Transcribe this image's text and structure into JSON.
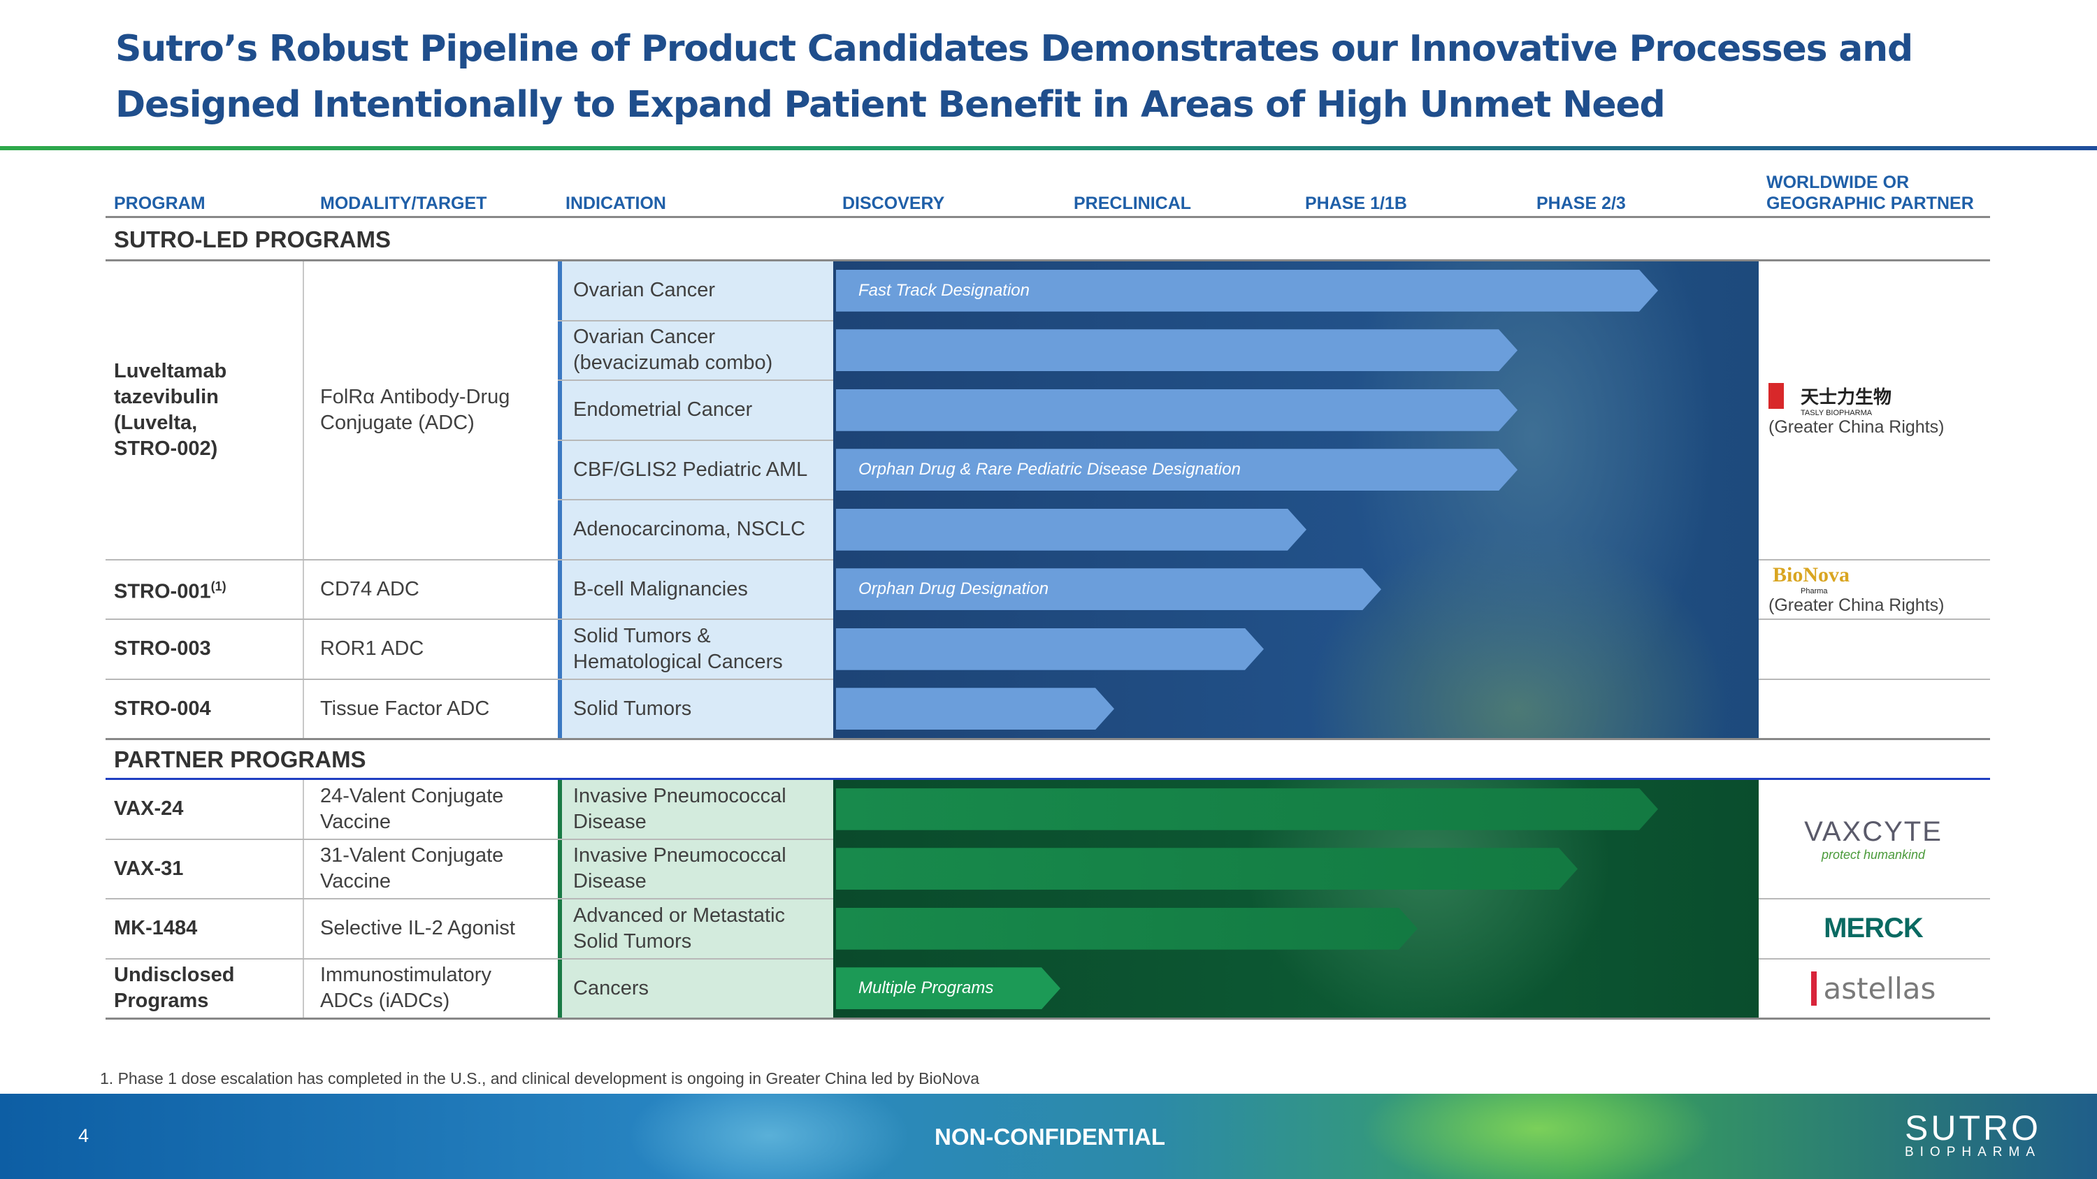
{
  "header": {
    "title": [
      "Sutro’s Robust Pipeline of Product Candidates Demonstrates our Innovative Processes and",
      "Designed Intentionally to Expand Patient Benefit in Areas of High Unmet Need"
    ]
  },
  "table": {
    "columns": [
      "PROGRAM",
      "MODALITY/TARGET",
      "INDICATION",
      "DISCOVERY",
      "PRECLINICAL",
      "PHASE 1/1B",
      "PHASE 2/3",
      [
        "WORLDWIDE OR",
        "GEOGRAPHIC PARTNER"
      ]
    ],
    "sections": [
      {
        "title": "SUTRO-LED PROGRAMS",
        "programs": [
          {
            "program": [
              "Luveltamab",
              "tazevibulin",
              "(Luvelta,",
              "STRO-002)"
            ],
            "modality": [
              "FolRα Antibody-Drug",
              "Conjugate (ADC)"
            ],
            "indications": [
              {
                "text": [
                  "Ovarian Cancer"
                ],
                "designation": "Fast Track Designation"
              },
              {
                "text": [
                  "Ovarian Cancer",
                  "(bevacizumab combo)"
                ]
              },
              {
                "text": [
                  "Endometrial Cancer"
                ]
              },
              {
                "text": [
                  "CBF/GLIS2 Pediatric AML"
                ],
                "designation": "Orphan Drug & Rare Pediatric Disease Designation"
              },
              {
                "text": [
                  "Adenocarcinoma, NSCLC"
                ]
              }
            ]
          },
          {
            "program": [
              "STRO-001"
            ],
            "footnote_ref": "(1)",
            "modality": [
              "CD74 ADC"
            ],
            "indications": [
              {
                "text": [
                  "B-cell Malignancies"
                ],
                "designation": "Orphan Drug Designation"
              }
            ]
          },
          {
            "program": [
              "STRO-003"
            ],
            "modality": [
              "ROR1 ADC"
            ],
            "indications": [
              {
                "text": [
                  "Solid Tumors &",
                  "Hematological Cancers"
                ]
              }
            ]
          },
          {
            "program": [
              "STRO-004"
            ],
            "modality": [
              "Tissue Factor ADC"
            ],
            "indications": [
              {
                "text": [
                  "Solid Tumors"
                ]
              }
            ]
          }
        ],
        "partners": [
          {
            "logo": "天士力生物",
            "logo_sub": "TASLY BIOPHARMA",
            "note": "(Greater China Rights)"
          },
          {
            "logo": "BioNova",
            "logo_sub": "Pharma",
            "note": "(Greater China Rights)"
          }
        ]
      },
      {
        "title": "PARTNER PROGRAMS",
        "programs": [
          {
            "program": [
              "VAX-24"
            ],
            "modality": [
              "24-Valent Conjugate",
              "Vaccine"
            ],
            "indications": [
              {
                "text": [
                  "Invasive Pneumococcal",
                  "Disease"
                ]
              }
            ]
          },
          {
            "program": [
              "VAX-31"
            ],
            "modality": [
              "31-Valent Conjugate",
              "Vaccine"
            ],
            "indications": [
              {
                "text": [
                  "Invasive Pneumococcal",
                  "Disease"
                ]
              }
            ]
          },
          {
            "program": [
              "MK-1484"
            ],
            "modality": [
              "Selective IL-2 Agonist"
            ],
            "indications": [
              {
                "text": [
                  "Advanced or Metastatic",
                  "Solid Tumors"
                ]
              }
            ]
          },
          {
            "program": [
              "Undisclosed",
              "Programs"
            ],
            "modality": [
              "Immunostimulatory",
              "ADCs (iADCs)"
            ],
            "indications": [
              {
                "text": [
                  "Cancers"
                ],
                "designation": "Multiple Programs"
              }
            ]
          }
        ],
        "partners": [
          {
            "logo": "VAXCYTE",
            "logo_sub": "protect humankind"
          },
          {
            "logo": "MERCK"
          },
          {
            "logo": "astellas"
          }
        ]
      }
    ]
  },
  "footnote": "1. Phase 1 dose escalation has completed in the U.S., and clinical development is ongoing in Greater China led by BioNova",
  "footer": {
    "page": "4",
    "label": "NON-CONFIDENTIAL",
    "logo": "SUTRO",
    "logo_sub": "BIOPHARMA"
  }
}
